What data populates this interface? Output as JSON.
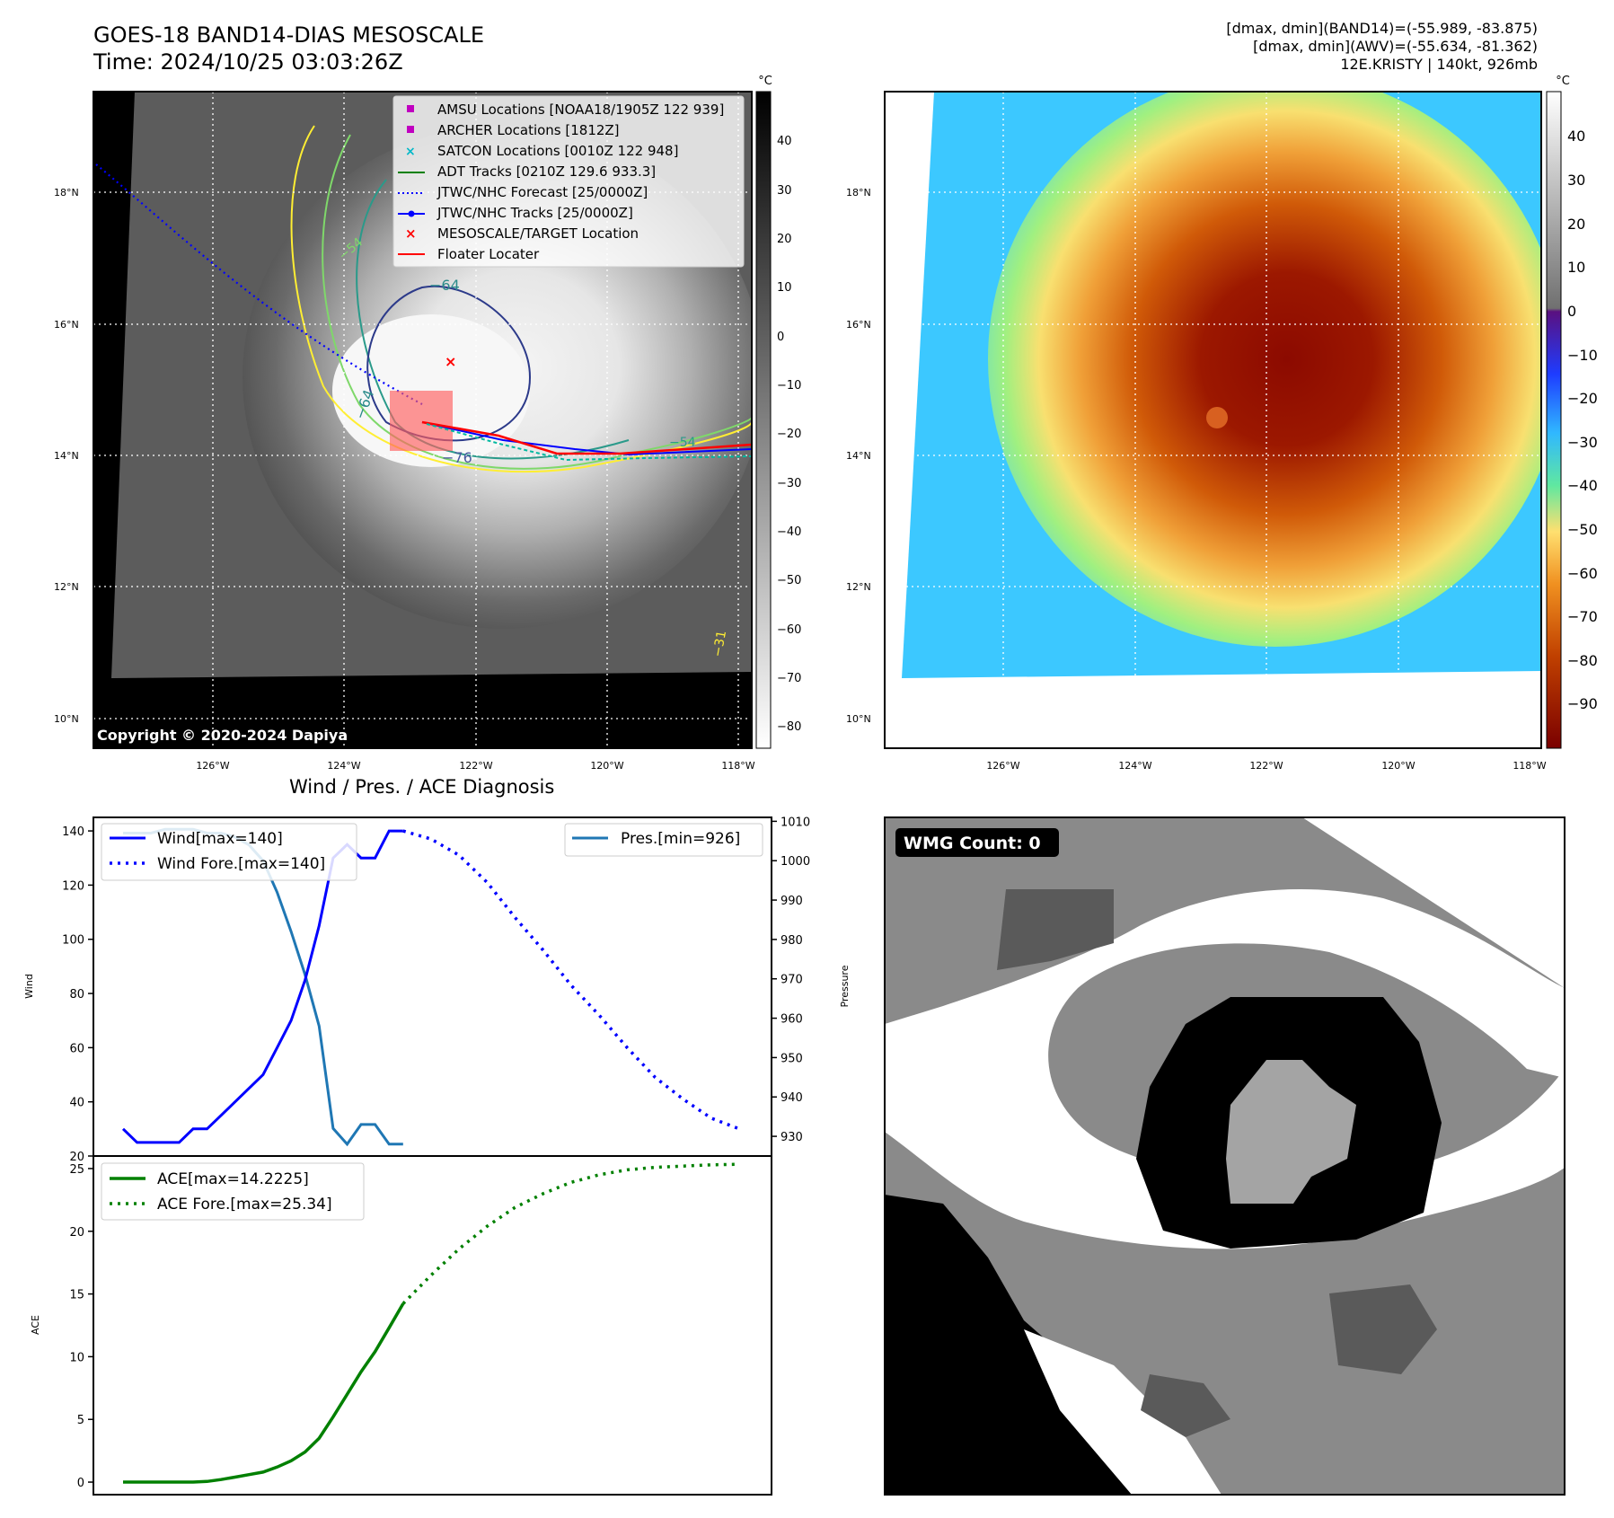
{
  "header": {
    "title_line1": "GOES-18 BAND14-DIAS MESOSCALE",
    "title_line2": "Time: 2024/10/25 03:03:26Z",
    "stats_line1": "[dmax, dmin](BAND14)=(-55.989, -83.875)",
    "stats_line2": "[dmax, dmin](AWV)=(-55.634, -81.362)",
    "stats_line3": "12E.KRISTY | 140kt, 926mb"
  },
  "ir_panel": {
    "lat_labels": [
      "18°N",
      "16°N",
      "14°N",
      "12°N",
      "10°N"
    ],
    "lon_labels": [
      "126°W",
      "124°W",
      "122°W",
      "120°W",
      "118°W"
    ],
    "colorbar_unit": "°C",
    "colorbar_ticks": [
      "40",
      "30",
      "20",
      "10",
      "0",
      "−10",
      "−20",
      "−30",
      "−40",
      "−50",
      "−60",
      "−70",
      "−80"
    ],
    "copyright": "Copyright © 2020-2024 Dapiya",
    "contour_labels": [
      "−64",
      "−64",
      "−76",
      "−54",
      "−54",
      "−31"
    ],
    "legend": [
      {
        "label": "AMSU Locations [NOAA18/1905Z 122 939]",
        "color": "#c000c0"
      },
      {
        "label": "ARCHER Locations [1812Z]",
        "color": "#c000c0"
      },
      {
        "label": "SATCON Locations [0010Z 122 948]",
        "color": "#00b8c8"
      },
      {
        "label": "ADT Tracks [0210Z 129.6 933.3]",
        "color": "#008000"
      },
      {
        "label": "JTWC/NHC Forecast [25/0000Z]",
        "color": "#0000ff"
      },
      {
        "label": "JTWC/NHC Tracks [25/0000Z]",
        "color": "#0000ff"
      },
      {
        "label": "MESOSCALE/TARGET Location",
        "color": "#ff0000"
      },
      {
        "label": "Floater Locater",
        "color": "#ff0000"
      }
    ]
  },
  "awv_panel": {
    "lat_labels": [
      "18°N",
      "16°N",
      "14°N",
      "12°N",
      "10°N"
    ],
    "lon_labels": [
      "126°W",
      "124°W",
      "122°W",
      "120°W",
      "118°W"
    ],
    "colorbar_unit": "°C",
    "colorbar_ticks": [
      "40",
      "30",
      "20",
      "10",
      "0",
      "−10",
      "−20",
      "−30",
      "−40",
      "−50",
      "−60",
      "−70",
      "−80",
      "−90"
    ]
  },
  "wmg_panel": {
    "badge": "WMG Count: 0"
  },
  "diagnosis": {
    "title": "Wind / Pres. / ACE Diagnosis",
    "wind_ylabel": "Wind",
    "pres_ylabel": "Pressure",
    "ace_ylabel": "ACE",
    "legend_wind": "Wind[max=140]",
    "legend_wind_fore": "Wind Fore.[max=140]",
    "legend_pres": "Pres.[min=926]",
    "legend_ace": "ACE[max=14.2225]",
    "legend_ace_fore": "ACE Fore.[max=25.34]"
  },
  "chart_data": [
    {
      "type": "line",
      "title": "Wind / Pres. / ACE Diagnosis",
      "ylabel": "Wind",
      "ylim": [
        20,
        145
      ],
      "x": [
        0,
        1,
        2,
        3,
        4,
        5,
        6,
        7,
        8,
        9,
        10,
        11,
        12,
        13,
        14,
        15,
        16,
        17,
        18,
        19,
        20
      ],
      "series": [
        {
          "name": "Wind[max=140]",
          "color": "#0000ff",
          "style": "solid",
          "values": [
            30,
            25,
            25,
            25,
            25,
            30,
            30,
            35,
            40,
            45,
            50,
            60,
            70,
            85,
            105,
            130,
            135,
            130,
            130,
            140,
            140
          ]
        },
        {
          "name": "Wind Fore.[max=140]",
          "color": "#0000ff",
          "style": "dotted",
          "x": [
            20,
            22,
            24,
            26,
            28,
            30,
            32,
            34,
            36,
            38,
            40,
            42,
            44
          ],
          "values": [
            140,
            137,
            131,
            121,
            108,
            96,
            83,
            72,
            60,
            49,
            41,
            34,
            30
          ]
        }
      ]
    },
    {
      "type": "line",
      "ylabel": "Pressure",
      "ylim": [
        925,
        1011
      ],
      "x": [
        0,
        1,
        2,
        3,
        4,
        5,
        6,
        7,
        8,
        9,
        10,
        11,
        12,
        13,
        14,
        15,
        16,
        17,
        18,
        19,
        20
      ],
      "series": [
        {
          "name": "Pres.[min=926]",
          "color": "#1f77b4",
          "style": "solid",
          "values": [
            1007,
            1007,
            1007,
            1008,
            1008,
            1008,
            1007,
            1007,
            1006,
            1004,
            1000,
            992,
            982,
            971,
            958,
            932,
            928,
            933,
            933,
            928,
            928
          ]
        }
      ]
    },
    {
      "type": "line",
      "ylabel": "ACE",
      "ylim": [
        -1,
        26
      ],
      "x": [
        0,
        1,
        2,
        3,
        4,
        5,
        6,
        7,
        8,
        9,
        10,
        11,
        12,
        13,
        14,
        15,
        16,
        17,
        18,
        19,
        20
      ],
      "series": [
        {
          "name": "ACE[max=14.2225]",
          "color": "#008000",
          "style": "solid",
          "values": [
            0,
            0,
            0,
            0,
            0,
            0,
            0.05,
            0.2,
            0.4,
            0.6,
            0.8,
            1.2,
            1.7,
            2.4,
            3.5,
            5.2,
            7,
            8.8,
            10.4,
            12.3,
            14.2225
          ]
        },
        {
          "name": "ACE Fore.[max=25.34]",
          "color": "#008000",
          "style": "dotted",
          "x": [
            20,
            22,
            24,
            26,
            28,
            30,
            32,
            34,
            36,
            38,
            40,
            42,
            44
          ],
          "values": [
            14.2225,
            16.5,
            18.6,
            20.4,
            21.9,
            23.0,
            23.9,
            24.5,
            24.9,
            25.1,
            25.2,
            25.3,
            25.34
          ]
        }
      ]
    }
  ]
}
